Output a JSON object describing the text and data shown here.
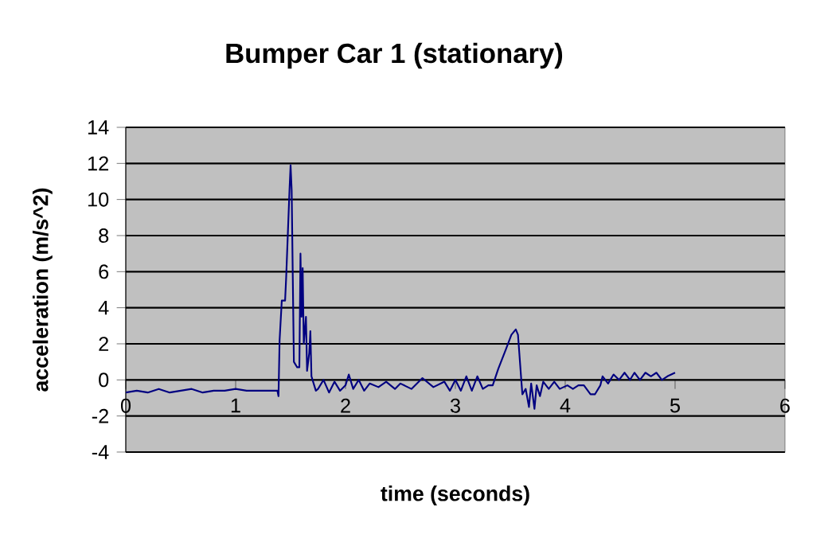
{
  "chart_data": {
    "type": "line",
    "title": "Bumper Car 1 (stationary)",
    "xlabel": "time (seconds)",
    "ylabel": "acceleration (m/s^2)",
    "x": [
      0,
      0.1,
      0.2,
      0.3,
      0.4,
      0.5,
      0.6,
      0.7,
      0.8,
      0.9,
      1.0,
      1.1,
      1.2,
      1.3,
      1.38,
      1.39,
      1.4,
      1.42,
      1.45,
      1.46,
      1.47,
      1.49,
      1.5,
      1.51,
      1.52,
      1.53,
      1.56,
      1.58,
      1.59,
      1.6,
      1.61,
      1.62,
      1.64,
      1.65,
      1.67,
      1.68,
      1.69,
      1.71,
      1.73,
      1.75,
      1.8,
      1.85,
      1.9,
      1.95,
      2.0,
      2.03,
      2.07,
      2.12,
      2.17,
      2.22,
      2.3,
      2.37,
      2.45,
      2.5,
      2.6,
      2.7,
      2.8,
      2.9,
      2.95,
      3.0,
      3.05,
      3.1,
      3.15,
      3.2,
      3.25,
      3.3,
      3.34,
      3.39,
      3.46,
      3.51,
      3.55,
      3.57,
      3.6,
      3.61,
      3.64,
      3.67,
      3.69,
      3.72,
      3.74,
      3.77,
      3.8,
      3.85,
      3.9,
      3.95,
      4.02,
      4.07,
      4.12,
      4.17,
      4.23,
      4.27,
      4.32,
      4.34,
      4.39,
      4.44,
      4.49,
      4.54,
      4.59,
      4.63,
      4.68,
      4.73,
      4.78,
      4.83,
      4.88,
      4.93,
      5.0
    ],
    "values": [
      -0.7,
      -0.6,
      -0.7,
      -0.5,
      -0.7,
      -0.6,
      -0.5,
      -0.7,
      -0.6,
      -0.6,
      -0.5,
      -0.6,
      -0.6,
      -0.6,
      -0.6,
      -0.9,
      2.2,
      4.4,
      4.4,
      5.7,
      7.3,
      10.5,
      11.9,
      10.5,
      5.7,
      1.0,
      0.7,
      0.7,
      7.0,
      3.5,
      6.2,
      2.0,
      3.5,
      0.5,
      1.5,
      2.7,
      0.2,
      -0.2,
      -0.6,
      -0.5,
      0.0,
      -0.7,
      -0.1,
      -0.6,
      -0.3,
      0.3,
      -0.5,
      0.0,
      -0.6,
      -0.2,
      -0.4,
      -0.1,
      -0.5,
      -0.2,
      -0.5,
      0.1,
      -0.4,
      -0.1,
      -0.6,
      0.0,
      -0.6,
      0.2,
      -0.6,
      0.2,
      -0.5,
      -0.3,
      -0.3,
      0.6,
      1.7,
      2.5,
      2.8,
      2.5,
      0.0,
      -0.8,
      -0.5,
      -1.5,
      -0.2,
      -1.6,
      -0.3,
      -0.9,
      -0.1,
      -0.5,
      -0.1,
      -0.5,
      -0.3,
      -0.5,
      -0.3,
      -0.3,
      -0.8,
      -0.8,
      -0.3,
      0.2,
      -0.2,
      0.3,
      0.0,
      0.4,
      0.0,
      0.4,
      0.0,
      0.4,
      0.2,
      0.4,
      0.0,
      0.2,
      0.4
    ],
    "color": "#000080",
    "xlim": [
      0,
      6
    ],
    "ylim": [
      -4,
      14
    ],
    "xticks": [
      0,
      1,
      2,
      3,
      4,
      5,
      6
    ],
    "yticks": [
      -4,
      -2,
      0,
      2,
      4,
      6,
      8,
      10,
      12,
      14
    ],
    "grid": "y",
    "marker": "none",
    "line_style": "solid"
  }
}
